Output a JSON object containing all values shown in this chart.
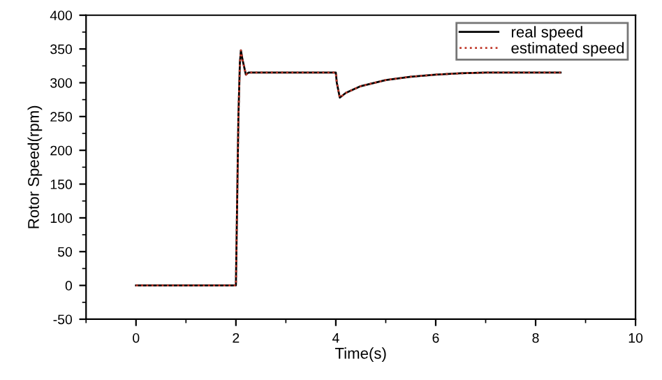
{
  "chart_data": {
    "type": "line",
    "xlabel": "Time(s)",
    "ylabel": "Rotor Speed(rpm)",
    "xlim": [
      -1,
      10
    ],
    "xticks": [
      0,
      2,
      4,
      6,
      8,
      10
    ],
    "ylim": [
      -50,
      400
    ],
    "yticks": [
      -50,
      0,
      50,
      100,
      150,
      200,
      250,
      300,
      350,
      400
    ],
    "legend": "top right",
    "grid": false,
    "series": [
      {
        "name": "real speed",
        "color": "#000000",
        "line_style": "solid",
        "x": [
          0,
          2,
          2.02,
          2.05,
          2.08,
          2.1,
          2.13,
          2.16,
          2.2,
          2.25,
          3,
          4,
          4.02,
          4.08,
          4.2,
          4.5,
          5,
          5.5,
          6,
          6.5,
          7,
          8.5
        ],
        "values": [
          0,
          0,
          100,
          250,
          330,
          348,
          335,
          325,
          312,
          315,
          315,
          315,
          300,
          278,
          285,
          295,
          304,
          309,
          312,
          314,
          315,
          315
        ]
      },
      {
        "name": "estimated speed",
        "color": "#c0392b",
        "line_style": "dotted",
        "x": [
          0,
          2,
          2.02,
          2.05,
          2.08,
          2.1,
          2.13,
          2.16,
          2.2,
          2.25,
          3,
          4,
          4.02,
          4.08,
          4.2,
          4.5,
          5,
          5.5,
          6,
          6.5,
          7,
          8.5
        ],
        "values": [
          0,
          0,
          100,
          250,
          330,
          348,
          335,
          325,
          312,
          315,
          315,
          315,
          300,
          278,
          285,
          295,
          304,
          309,
          312,
          314,
          315,
          315
        ]
      }
    ]
  }
}
